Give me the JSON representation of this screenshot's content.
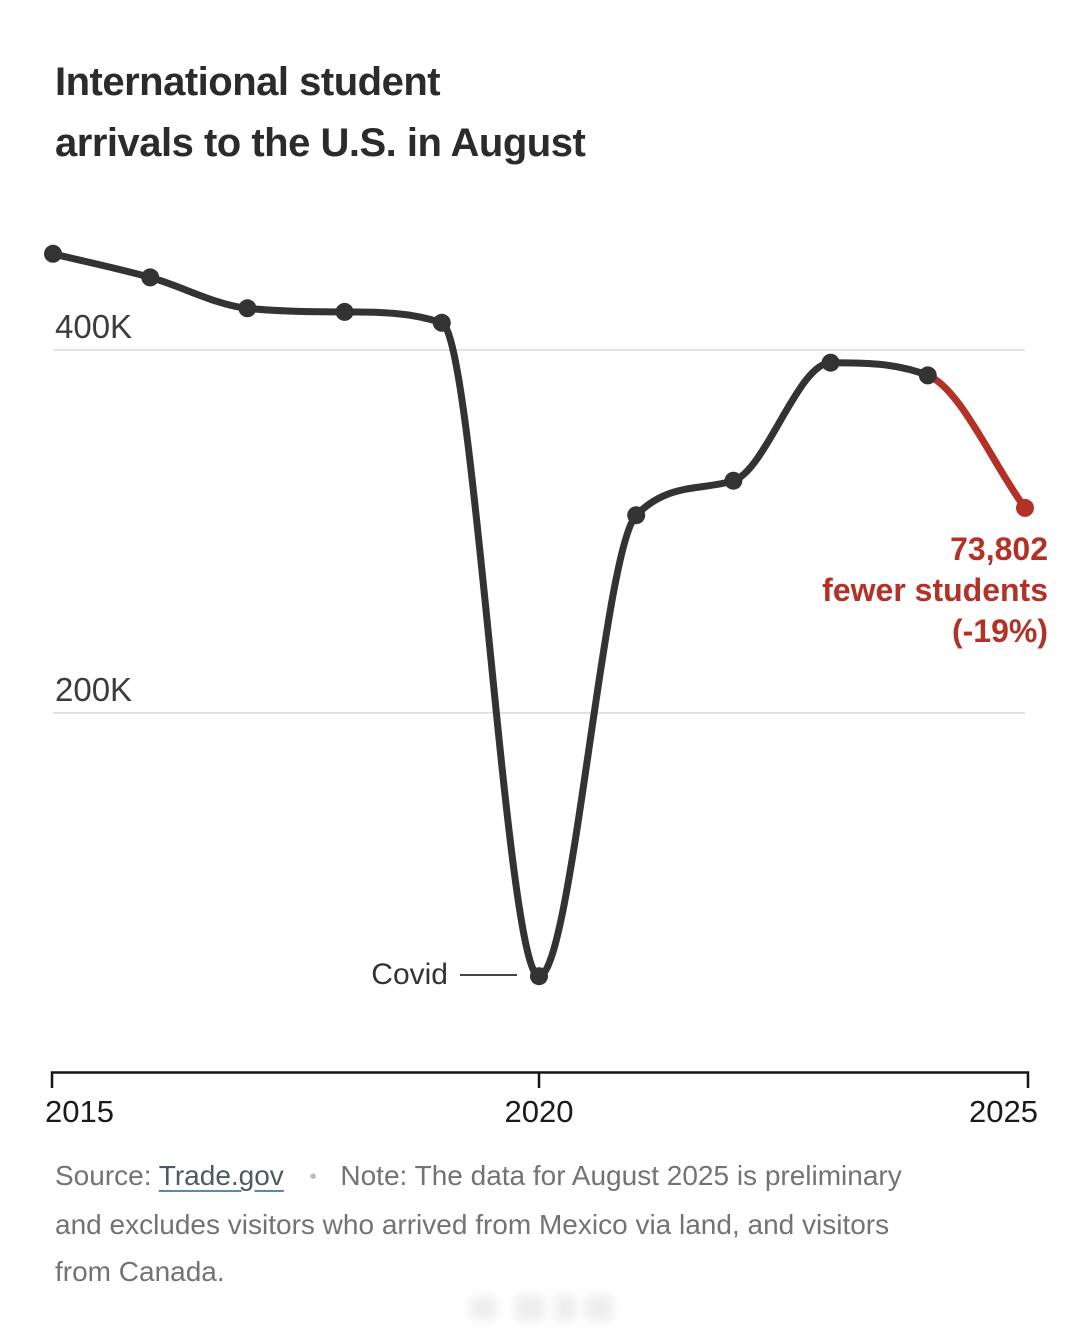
{
  "title": {
    "line1": "International student",
    "line2": "arrivals to the U.S. in August"
  },
  "chart_data": {
    "type": "line",
    "title": "International student arrivals to the U.S. in August",
    "x": [
      2015,
      2016,
      2017,
      2018,
      2019,
      2020,
      2021,
      2022,
      2023,
      2024,
      2025
    ],
    "series": [
      {
        "name": "International student arrivals in August",
        "unit": "thousands",
        "values_k": [
          453,
          440,
          423,
          421,
          415,
          55,
          309,
          328,
          393,
          386,
          313
        ]
      }
    ],
    "yticks": [
      {
        "label": "400K",
        "value_k": 400
      },
      {
        "label": "200K",
        "value_k": 200
      }
    ],
    "xticks": [
      "2015",
      "2020",
      "2025"
    ],
    "xlim": [
      2015,
      2025
    ],
    "grid": "horizontal",
    "legend": "none",
    "highlight": {
      "start_year": 2024,
      "end_year": 2025
    },
    "annotations": [
      {
        "target_year": 2020,
        "text": "Covid"
      },
      {
        "target_year": 2025,
        "lines": [
          "73,802",
          "fewer students",
          "(-19%)"
        ]
      }
    ]
  },
  "y_axis": {
    "label_400k": "400K",
    "label_200k": "200K"
  },
  "x_axis": {
    "tick_2015": "2015",
    "tick_2020": "2020",
    "tick_2025": "2025"
  },
  "covid": {
    "label": "Covid"
  },
  "drop": {
    "line1": "73,802",
    "line2": "fewer students",
    "line3": "(-19%)"
  },
  "footer": {
    "source_label": "Source:",
    "source_link": "Trade.gov",
    "bullet": "•",
    "note_line1": "Note: The data for August 2025 is preliminary",
    "note_line2": "and excludes visitors who arrived from Mexico via land, and visitors",
    "note_line3": "from Canada."
  },
  "colors": {
    "line": "#333333",
    "highlight": "#b23227",
    "gridline": "#d9d9d9",
    "axis": "#141414",
    "leader_line": "#444444"
  }
}
